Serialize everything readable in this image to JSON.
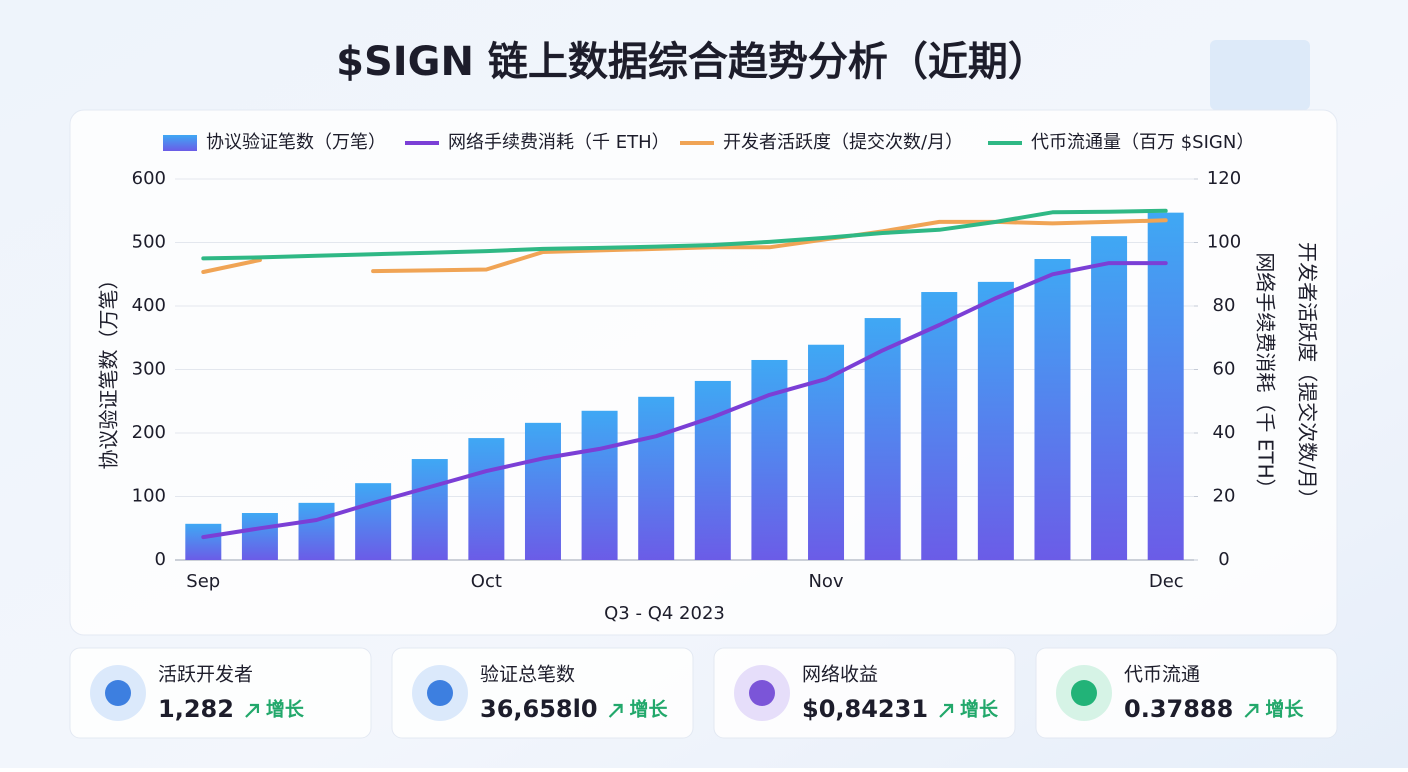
{
  "chart_data": {
    "type": "bar-line",
    "title": "$SIGN 链上数据综合趋势分析（近期）",
    "xlabel": "Q3 - Q4 2023",
    "ylabel": "协议验证笔数（万笔）",
    "y2labels": [
      "网络手续费消耗（千 ETH）",
      "开发者活跃度（提交次数/月）"
    ],
    "categories": [
      "Sep",
      null,
      null,
      null,
      null,
      "Oct",
      null,
      null,
      null,
      null,
      null,
      "Nov",
      null,
      null,
      null,
      null,
      null,
      "Dec"
    ],
    "ylim": [
      0,
      600
    ],
    "yticks": [
      0,
      100,
      200,
      300,
      400,
      500,
      600
    ],
    "y2lim": [
      0,
      120
    ],
    "y2ticks": [
      0,
      20,
      40,
      60,
      80,
      100,
      120
    ],
    "grid": true,
    "series": [
      {
        "name": "协议验证笔数（万笔）",
        "type": "bar",
        "color": "#3fa8f4",
        "values": [
          57,
          74,
          90,
          121,
          159,
          192,
          216,
          235,
          257,
          282,
          315,
          339,
          381,
          422,
          438,
          474,
          510,
          547
        ]
      },
      {
        "name": "网络手续费消耗（千 ETH）",
        "type": "line",
        "axis": "y2",
        "color": "#7b3fd6",
        "values": [
          7.2,
          10,
          12.6,
          18,
          23,
          28,
          32,
          35,
          39,
          45,
          52,
          57,
          66,
          74,
          82.5,
          90,
          93.5,
          93.5
        ]
      },
      {
        "name": "开发者活跃度（提交次数/月）",
        "type": "line",
        "axis": "y2",
        "color": "#f0a455",
        "values": [
          90.7,
          94.5,
          null,
          91,
          91.2,
          91.5,
          97,
          97.5,
          98,
          98.5,
          98.5,
          101,
          103.5,
          106.5,
          106.5,
          106,
          106.5,
          107
        ]
      },
      {
        "name": "代币流通量（百万 $SIGN）",
        "type": "line",
        "axis": "y2",
        "color": "#2fb885",
        "values": [
          95,
          95.3,
          95.8,
          96.3,
          96.8,
          97.3,
          98,
          98.3,
          98.7,
          99.2,
          100.2,
          101.5,
          103,
          104,
          106.5,
          109.5,
          109.7,
          110
        ]
      }
    ]
  },
  "kpis": [
    {
      "label": "活跃开发者",
      "value": "1,282",
      "trend": "增长"
    },
    {
      "label": "验证总笔数",
      "value": "36,658l0",
      "trend": "增长"
    },
    {
      "label": "网络收益",
      "value": "$0,84231",
      "trend": "增长"
    },
    {
      "label": "代币流通",
      "value": "0.37888",
      "trend": "增长"
    }
  ]
}
